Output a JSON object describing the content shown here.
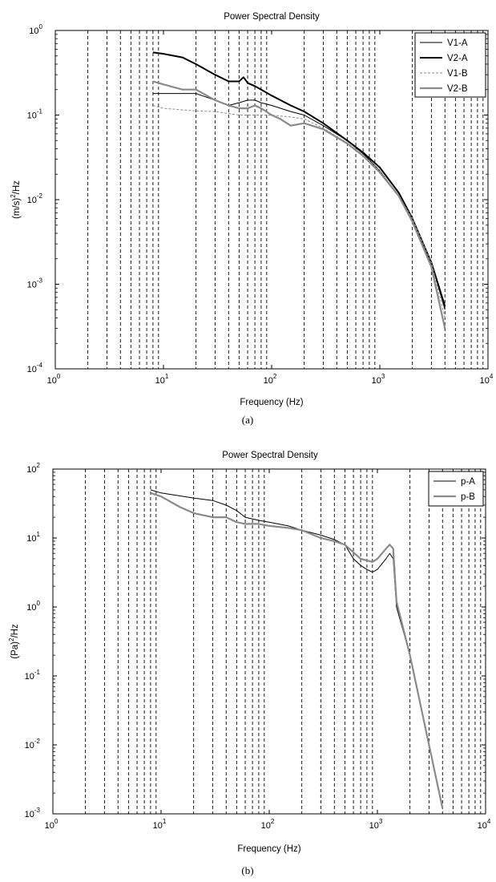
{
  "chart_data": [
    {
      "type": "line",
      "panel": "(a)",
      "title": "Power Spectral Density",
      "xlabel": "Frequency (Hz)",
      "ylabel_main": "(m/s)",
      "ylabel_sup": "2",
      "ylabel_tail": "/Hz",
      "x_scale": "log",
      "y_scale": "log",
      "xlim": [
        1,
        10000
      ],
      "ylim": [
        0.0001,
        1
      ],
      "x_ticks": [
        {
          "mantissa": "10",
          "exp": "0"
        },
        {
          "mantissa": "10",
          "exp": "1"
        },
        {
          "mantissa": "10",
          "exp": "2"
        },
        {
          "mantissa": "10",
          "exp": "3"
        },
        {
          "mantissa": "10",
          "exp": "4"
        }
      ],
      "y_ticks": [
        {
          "mantissa": "10",
          "exp": "-4"
        },
        {
          "mantissa": "10",
          "exp": "-3"
        },
        {
          "mantissa": "10",
          "exp": "-2"
        },
        {
          "mantissa": "10",
          "exp": "-1"
        },
        {
          "mantissa": "10",
          "exp": "0"
        }
      ],
      "grid": "vertical dashed at minor x ticks",
      "legend_position": "top-right",
      "series": [
        {
          "name": "V1-A",
          "color": "#000000",
          "width": 1,
          "dash": "",
          "x": [
            8,
            10,
            20,
            30,
            40,
            50,
            60,
            70,
            80,
            100,
            150,
            200,
            300,
            500,
            700,
            1000,
            1500,
            2000,
            3000,
            4000
          ],
          "y": [
            0.18,
            0.18,
            0.18,
            0.15,
            0.13,
            0.14,
            0.15,
            0.15,
            0.14,
            0.13,
            0.11,
            0.1,
            0.075,
            0.05,
            0.035,
            0.022,
            0.011,
            0.006,
            0.0018,
            0.0005
          ]
        },
        {
          "name": "V2-A",
          "color": "#000000",
          "width": 2,
          "dash": "",
          "x": [
            8,
            10,
            15,
            20,
            30,
            40,
            50,
            55,
            60,
            70,
            80,
            100,
            150,
            200,
            300,
            500,
            700,
            1000,
            1500,
            2000,
            3000,
            4000
          ],
          "y": [
            0.55,
            0.53,
            0.48,
            0.4,
            0.3,
            0.25,
            0.25,
            0.28,
            0.24,
            0.22,
            0.2,
            0.17,
            0.13,
            0.11,
            0.08,
            0.05,
            0.036,
            0.024,
            0.012,
            0.006,
            0.0018,
            0.00055
          ]
        },
        {
          "name": "V1-B",
          "color": "#8a8a8a",
          "width": 1,
          "dash": "3,2",
          "x": [
            8,
            10,
            15,
            20,
            30,
            50,
            70,
            100,
            150,
            200,
            300,
            500,
            700,
            1000,
            1500,
            2000,
            3000,
            4000
          ],
          "y": [
            0.13,
            0.12,
            0.115,
            0.112,
            0.11,
            0.1,
            0.1,
            0.1,
            0.095,
            0.09,
            0.07,
            0.047,
            0.034,
            0.022,
            0.011,
            0.006,
            0.0018,
            0.0004
          ]
        },
        {
          "name": "V2-B",
          "color": "#8a8a8a",
          "width": 2.2,
          "dash": "",
          "x": [
            8,
            10,
            15,
            20,
            30,
            40,
            50,
            60,
            70,
            80,
            100,
            120,
            150,
            200,
            300,
            500,
            700,
            1000,
            1500,
            2000,
            3000,
            4000
          ],
          "y": [
            0.25,
            0.23,
            0.2,
            0.2,
            0.15,
            0.13,
            0.12,
            0.12,
            0.13,
            0.12,
            0.1,
            0.09,
            0.075,
            0.08,
            0.068,
            0.046,
            0.033,
            0.021,
            0.011,
            0.0055,
            0.0016,
            0.0003
          ]
        }
      ]
    },
    {
      "type": "line",
      "panel": "(b)",
      "title": "Power Spectral Density",
      "xlabel": "Frequency (Hz)",
      "ylabel_main": "(Pa)",
      "ylabel_sup": "2",
      "ylabel_tail": "/Hz",
      "x_scale": "log",
      "y_scale": "log",
      "xlim": [
        1,
        10000
      ],
      "ylim": [
        0.001,
        100
      ],
      "x_ticks": [
        {
          "mantissa": "10",
          "exp": "0"
        },
        {
          "mantissa": "10",
          "exp": "1"
        },
        {
          "mantissa": "10",
          "exp": "2"
        },
        {
          "mantissa": "10",
          "exp": "3"
        },
        {
          "mantissa": "10",
          "exp": "4"
        }
      ],
      "y_ticks": [
        {
          "mantissa": "10",
          "exp": "-3"
        },
        {
          "mantissa": "10",
          "exp": "-2"
        },
        {
          "mantissa": "10",
          "exp": "-1"
        },
        {
          "mantissa": "10",
          "exp": "0"
        },
        {
          "mantissa": "10",
          "exp": "1"
        },
        {
          "mantissa": "10",
          "exp": "2"
        }
      ],
      "grid": "vertical dashed at minor x ticks",
      "legend_position": "top-right",
      "series": [
        {
          "name": "p-A",
          "color": "#000000",
          "width": 1,
          "dash": "",
          "x": [
            8,
            10,
            20,
            30,
            40,
            50,
            60,
            80,
            100,
            150,
            200,
            300,
            400,
            500,
            600,
            700,
            800,
            900,
            1000,
            1200,
            1300,
            1400,
            1500,
            2000,
            3000,
            4000
          ],
          "y": [
            50,
            45,
            38,
            35,
            30,
            25,
            20,
            18,
            17,
            15,
            13,
            11,
            9.5,
            8,
            5,
            4,
            3.5,
            3.2,
            3.5,
            5,
            6,
            5,
            1.0,
            0.2,
            0.01,
            0.0012
          ]
        },
        {
          "name": "p-B",
          "color": "#8a8a8a",
          "width": 2.2,
          "dash": "",
          "x": [
            8,
            10,
            15,
            20,
            30,
            40,
            50,
            60,
            80,
            100,
            150,
            200,
            300,
            400,
            500,
            700,
            900,
            1000,
            1200,
            1300,
            1400,
            1500,
            2000,
            3000,
            4000
          ],
          "y": [
            45,
            40,
            28,
            23,
            20,
            20,
            17,
            16,
            16,
            15,
            14,
            13,
            10,
            9,
            8,
            5,
            4.5,
            5,
            7,
            8,
            7,
            1.2,
            0.2,
            0.01,
            0.0012
          ]
        }
      ]
    }
  ]
}
